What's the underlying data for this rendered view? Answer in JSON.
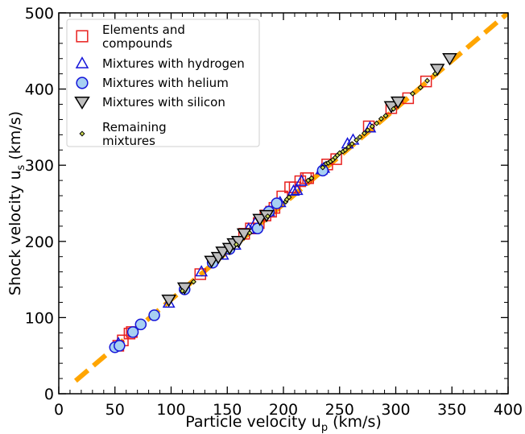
{
  "chart_data": {
    "type": "scatter",
    "xlabel": {
      "main": "Particle velocity u",
      "sub": "p",
      "unit": " (km/s)"
    },
    "ylabel": {
      "main": "Shock velocity u",
      "sub": "s",
      "unit": " (km/s)"
    },
    "xlim": [
      0,
      400
    ],
    "ylim": [
      0,
      500
    ],
    "xticks": [
      0,
      50,
      100,
      150,
      200,
      250,
      300,
      350,
      400
    ],
    "yticks": [
      0,
      100,
      200,
      300,
      400,
      500
    ],
    "grid": false,
    "legend_position": "top-left",
    "fit_line": {
      "x": [
        15,
        400
      ],
      "y": [
        17,
        500
      ],
      "color": "#FFA500",
      "style": "dashed"
    },
    "series": [
      {
        "name": "Elements and compounds",
        "legend_lines": [
          "Elements and",
          "compounds"
        ],
        "marker": "square",
        "color": "#E8201E",
        "fill": "none",
        "points": [
          [
            57,
            70
          ],
          [
            53,
            63
          ],
          [
            63,
            79
          ],
          [
            65,
            81
          ],
          [
            126,
            157
          ],
          [
            165,
            210
          ],
          [
            171,
            217
          ],
          [
            178,
            224
          ],
          [
            184,
            234
          ],
          [
            189,
            239
          ],
          [
            192,
            244
          ],
          [
            199,
            259
          ],
          [
            206,
            271
          ],
          [
            210,
            271
          ],
          [
            215,
            279
          ],
          [
            220,
            283
          ],
          [
            222,
            283
          ],
          [
            239,
            301
          ],
          [
            247,
            308
          ],
          [
            276,
            351
          ],
          [
            296,
            375
          ],
          [
            311,
            388
          ],
          [
            327,
            410
          ]
        ]
      },
      {
        "name": "Mixtures with hydrogen",
        "legend_lines": [
          "Mixtures with hydrogen"
        ],
        "marker": "triangle-up",
        "color": "#1515D9",
        "fill": "none",
        "points": [
          [
            53,
            66
          ],
          [
            98,
            119
          ],
          [
            127,
            160
          ],
          [
            146,
            182
          ],
          [
            157,
            195
          ],
          [
            169,
            216
          ],
          [
            175,
            224
          ],
          [
            187,
            239
          ],
          [
            197,
            251
          ],
          [
            209,
            266
          ],
          [
            212,
            267
          ],
          [
            216,
            279
          ],
          [
            234,
            294
          ],
          [
            236,
            296
          ],
          [
            257,
            328
          ],
          [
            262,
            333
          ],
          [
            277,
            349
          ]
        ]
      },
      {
        "name": "Mixtures with helium",
        "legend_lines": [
          "Mixtures with helium"
        ],
        "marker": "circle",
        "color": "#1515D9",
        "fill": "#A7D0F2",
        "points": [
          [
            50,
            61
          ],
          [
            54,
            63
          ],
          [
            66,
            81
          ],
          [
            73,
            91
          ],
          [
            85,
            103
          ],
          [
            112,
            137
          ],
          [
            137,
            172
          ],
          [
            152,
            190
          ],
          [
            177,
            217
          ],
          [
            187,
            239
          ],
          [
            194,
            250
          ],
          [
            235,
            293
          ]
        ]
      },
      {
        "name": "Mixtures with silicon",
        "legend_lines": [
          "Mixtures with silicon"
        ],
        "marker": "triangle-down",
        "color": "#000000",
        "fill": "#BEBEBE",
        "points": [
          [
            98,
            123
          ],
          [
            112,
            139
          ],
          [
            136,
            174
          ],
          [
            142,
            179
          ],
          [
            146,
            186
          ],
          [
            152,
            191
          ],
          [
            156,
            197
          ],
          [
            160,
            200
          ],
          [
            165,
            210
          ],
          [
            179,
            229
          ],
          [
            185,
            234
          ],
          [
            296,
            377
          ],
          [
            302,
            383
          ],
          [
            337,
            426
          ],
          [
            348,
            440
          ]
        ]
      },
      {
        "name": "Remaining mixtures",
        "legend_lines": [
          "Remaining",
          "mixtures"
        ],
        "marker": "diamond",
        "color": "#000000",
        "fill": "#CDDB52",
        "points": [
          [
            110,
            135
          ],
          [
            120,
            147
          ],
          [
            158,
            196
          ],
          [
            170,
            211
          ],
          [
            186,
            233
          ],
          [
            202,
            252
          ],
          [
            203,
            255
          ],
          [
            205,
            258
          ],
          [
            222,
            280
          ],
          [
            225,
            283
          ],
          [
            235,
            297
          ],
          [
            238,
            302
          ],
          [
            240,
            303
          ],
          [
            242,
            305
          ],
          [
            244,
            307
          ],
          [
            246,
            310
          ],
          [
            248,
            313
          ],
          [
            250,
            316
          ],
          [
            253,
            318
          ],
          [
            255,
            320
          ],
          [
            258,
            324
          ],
          [
            261,
            328
          ],
          [
            265,
            333
          ],
          [
            268,
            337
          ],
          [
            272,
            342
          ],
          [
            275,
            346
          ],
          [
            279,
            351
          ],
          [
            283,
            355
          ],
          [
            287,
            361
          ],
          [
            291,
            365
          ],
          [
            298,
            374
          ],
          [
            315,
            394
          ],
          [
            322,
            402
          ],
          [
            328,
            411
          ],
          [
            335,
            420
          ]
        ]
      }
    ]
  }
}
